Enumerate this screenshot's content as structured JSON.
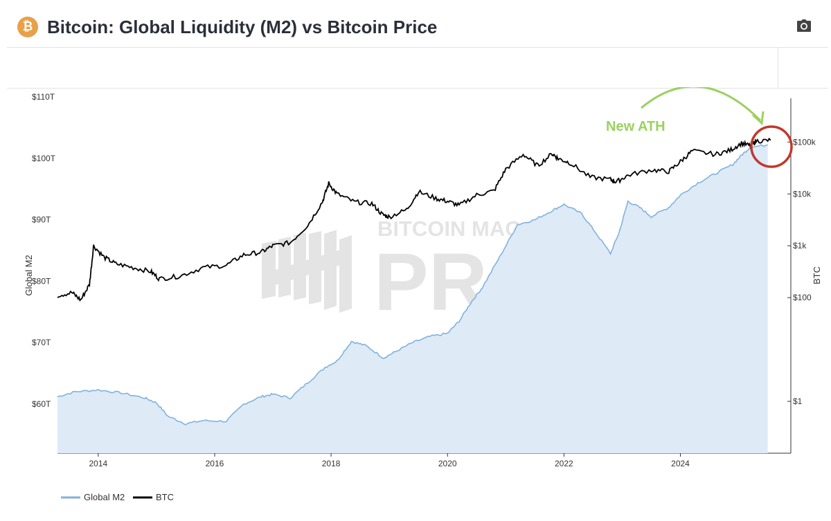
{
  "header": {
    "logo_glyph": "₿",
    "title": "Bitcoin: Global Liquidity (M2) vs Bitcoin Price",
    "toolbar_icon": "camera-icon"
  },
  "watermark": {
    "line1": "BITCOIN MAGAZINE",
    "line2": "PRO",
    "mark": "®"
  },
  "annotation": {
    "text": "New ATH",
    "color": "#9bd15f",
    "circle_color": "#c0392b"
  },
  "chart_data": {
    "type": "area",
    "title": "Bitcoin: Global Liquidity (M2) vs Bitcoin Price",
    "xlabel": "",
    "ylabel": "Global M2",
    "y2label": "BTC",
    "xlim": [
      2013.3,
      2025.6
    ],
    "ylim": [
      52,
      110
    ],
    "y2_scale": "log",
    "y2lim": [
      0.1,
      700000
    ],
    "x_ticks": [
      2014,
      2016,
      2018,
      2020,
      2022,
      2024
    ],
    "x_tick_labels": [
      "2014",
      "2016",
      "2018",
      "2020",
      "2022",
      "2024"
    ],
    "y_ticks": [
      60,
      70,
      80,
      90,
      100,
      110
    ],
    "y_tick_labels": [
      "$60T",
      "$70T",
      "$80T",
      "$90T",
      "$100T",
      "$110T"
    ],
    "y2_ticks": [
      1,
      100,
      1000,
      10000,
      100000
    ],
    "y2_tick_labels": [
      "$1",
      "$100",
      "$1k",
      "$10k",
      "$100k"
    ],
    "legend_position": "bottom-left",
    "series": [
      {
        "name": "Global M2",
        "axis": "left",
        "color": "#7fb2dc",
        "fill": "#dfeaf7",
        "x": [
          2013.3,
          2013.6,
          2014.0,
          2014.4,
          2014.8,
          2015.0,
          2015.2,
          2015.5,
          2015.8,
          2016.2,
          2016.5,
          2016.8,
          2017.0,
          2017.3,
          2017.6,
          2017.9,
          2018.1,
          2018.35,
          2018.6,
          2018.9,
          2019.1,
          2019.4,
          2019.7,
          2020.0,
          2020.2,
          2020.4,
          2020.6,
          2020.9,
          2021.2,
          2021.5,
          2021.8,
          2022.0,
          2022.3,
          2022.5,
          2022.8,
          2022.95,
          2023.1,
          2023.3,
          2023.5,
          2023.8,
          2024.0,
          2024.3,
          2024.6,
          2024.9,
          2025.05,
          2025.2,
          2025.5
        ],
        "values": [
          61.2,
          62.0,
          62.3,
          61.8,
          61.0,
          60.2,
          58.0,
          56.8,
          57.3,
          57.2,
          60.0,
          61.2,
          61.6,
          61.0,
          63.5,
          66.0,
          67.0,
          70.2,
          69.5,
          67.5,
          68.5,
          70.0,
          71.0,
          71.5,
          73.5,
          76.5,
          79.0,
          84.0,
          89.2,
          90.0,
          91.5,
          92.5,
          91.0,
          88.5,
          84.5,
          88.0,
          93.0,
          92.0,
          90.5,
          92.0,
          94.0,
          96.0,
          97.5,
          99.0,
          100.5,
          101.8,
          102.2
        ]
      },
      {
        "name": "BTC",
        "axis": "right",
        "color": "#000000",
        "x": [
          2013.3,
          2013.55,
          2013.7,
          2013.85,
          2013.92,
          2014.1,
          2014.3,
          2014.6,
          2014.9,
          2015.05,
          2015.4,
          2015.8,
          2016.2,
          2016.5,
          2016.8,
          2017.0,
          2017.3,
          2017.6,
          2017.85,
          2017.96,
          2018.1,
          2018.4,
          2018.7,
          2018.88,
          2019.0,
          2019.3,
          2019.5,
          2019.8,
          2020.0,
          2020.2,
          2020.5,
          2020.8,
          2021.0,
          2021.3,
          2021.55,
          2021.8,
          2021.9,
          2022.1,
          2022.45,
          2022.8,
          2022.9,
          2023.1,
          2023.5,
          2023.8,
          2024.0,
          2024.2,
          2024.6,
          2024.85,
          2025.05,
          2025.2,
          2025.3,
          2025.55
        ],
        "values": [
          110,
          125,
          90,
          180,
          1000,
          600,
          450,
          380,
          320,
          230,
          260,
          380,
          420,
          670,
          750,
          1000,
          1150,
          2500,
          7000,
          16000,
          10000,
          7000,
          6500,
          4000,
          3600,
          5000,
          11000,
          8200,
          7200,
          6000,
          9500,
          11500,
          30000,
          58000,
          35000,
          60000,
          48000,
          40000,
          21000,
          19000,
          17000,
          23000,
          29000,
          27000,
          42000,
          67000,
          58000,
          69000,
          95000,
          85000,
          105000,
          108000
        ]
      }
    ],
    "annotations": [
      {
        "text": "New ATH",
        "x": 2025.15,
        "y2": 100000
      }
    ]
  }
}
